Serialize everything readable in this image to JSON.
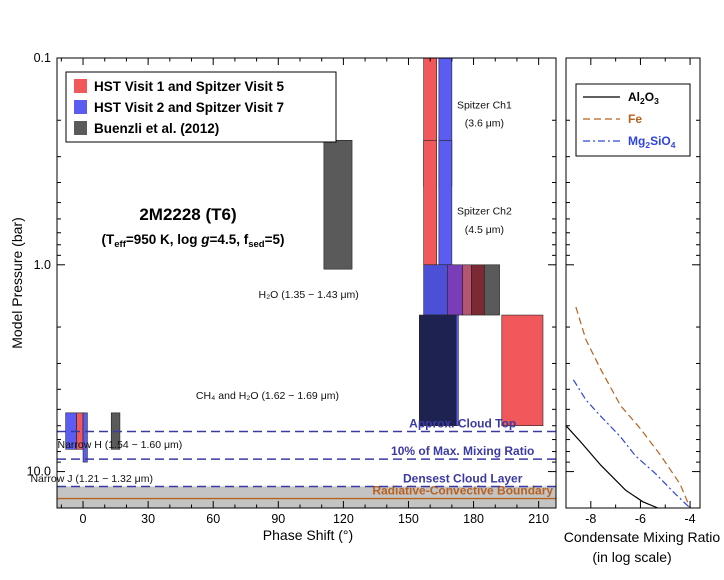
{
  "chart_data": [
    {
      "type": "bar",
      "title": "2M2228 (T6)",
      "subtitle": {
        "pre": "(T",
        "teff_sub": "eff",
        "mid1": "=950 K, log ",
        "g": "g",
        "mid2": "=4.5, f",
        "fsed_sub": "sed",
        "post": "=5)"
      },
      "xlabel": "Phase Shift (°)",
      "ylabel": "Model Pressure (bar)",
      "xlim": [
        -12,
        218
      ],
      "ylim": [
        0.1,
        15
      ],
      "yscale": "log",
      "xticks": [
        "0",
        "30",
        "60",
        "90",
        "120",
        "150",
        "180",
        "210"
      ],
      "yticks": [
        "0.1",
        "1.0",
        "10.0"
      ],
      "legend_placement": "top-left",
      "legend": [
        {
          "label": "HST Visit 1 and Spitzer Visit 5",
          "color": "#f0585c"
        },
        {
          "label": "HST Visit 2 and Spitzer Visit 7",
          "color": "#5a5cf2"
        },
        {
          "label": "Buenzli et al. (2012)",
          "color": "#5a5a5a"
        }
      ],
      "series": [
        {
          "name": "HST Visit 1 and Spitzer Visit 5",
          "color": "#f0585c",
          "bars": [
            {
              "x": [
                157,
                163
              ],
              "p": [
                0.1,
                0.42
              ]
            },
            {
              "x": [
                157,
                163
              ],
              "p": [
                0.25,
                1.0
              ]
            },
            {
              "x": [
                193,
                212
              ],
              "p": [
                1.75,
                6.0
              ]
            },
            {
              "x": [
                -3,
                0
              ],
              "p": [
                5.2,
                7.8
              ]
            }
          ]
        },
        {
          "name": "HST Visit 2 and Spitzer Visit 7",
          "color": "#5a5cf2",
          "bars": [
            {
              "x": [
                164,
                170
              ],
              "p": [
                0.1,
                0.42
              ]
            },
            {
              "x": [
                164,
                170
              ],
              "p": [
                0.25,
                1.0
              ]
            },
            {
              "x": [
                160,
                173
              ],
              "p": [
                1.0,
                6.0
              ]
            },
            {
              "x": [
                -8,
                -3
              ],
              "p": [
                5.2,
                7.8
              ]
            },
            {
              "x": [
                0,
                2
              ],
              "p": [
                5.2,
                9.0
              ]
            }
          ]
        },
        {
          "name": "Buenzli et al. (2012)",
          "color": "#5a5a5a",
          "bars": [
            {
              "x": [
                111,
                124
              ],
              "p": [
                0.25,
                1.05
              ]
            },
            {
              "x": [
                13,
                17
              ],
              "p": [
                5.2,
                7.8
              ]
            }
          ]
        }
      ],
      "overlap_bars": [
        {
          "x": [
            157,
            172
          ],
          "p": [
            1.0,
            1.75
          ],
          "color": "#4b50d6"
        },
        {
          "x": [
            168,
            175
          ],
          "p": [
            1.0,
            1.75
          ],
          "color": "#7a3db8"
        },
        {
          "x": [
            175,
            179
          ],
          "p": [
            1.0,
            1.75
          ],
          "color": "#b55572"
        },
        {
          "x": [
            179,
            185
          ],
          "p": [
            1.0,
            1.75
          ],
          "color": "#7b2a33"
        },
        {
          "x": [
            185,
            192
          ],
          "p": [
            1.0,
            1.75
          ],
          "color": "#5a5a5a"
        },
        {
          "x": [
            155,
            172
          ],
          "p": [
            1.75,
            6.0
          ],
          "color": "#1e2250"
        }
      ],
      "hlines": [
        {
          "label": "Approx. Cloud Top",
          "p": 6.4,
          "color": "#3b3aa3",
          "label_x": 175
        },
        {
          "label": "10% of Max. Mixing Ratio",
          "p": 8.7,
          "color": "#3b3aa3",
          "label_x": 175
        },
        {
          "label": "Densest Cloud Layer",
          "p": 11.8,
          "color": "#3b3aa3",
          "label_x": 175
        }
      ],
      "rcb": {
        "label": "Radiative-Convective Boundary",
        "p_range": [
          11.8,
          15.0
        ],
        "line_p": 13.5,
        "fill": "#c4c4c4",
        "line_color": "#b8621e"
      },
      "annotations": [
        {
          "text": "Spitzer Ch1",
          "x": 185,
          "p": 0.175
        },
        {
          "text": "(3.6 μm)",
          "x": 185,
          "p": 0.215
        },
        {
          "text": "Spitzer Ch2",
          "x": 185,
          "p": 0.57
        },
        {
          "text": "(4.5 μm)",
          "x": 185,
          "p": 0.7
        },
        {
          "text": "H₂O (1.35 − 1.43 μm)",
          "x": 104,
          "p": 1.45
        },
        {
          "text": "CH₄ and H₂O (1.62 − 1.69 μm)",
          "x": 85,
          "p": 4.45
        },
        {
          "text": "Narrow H (1.54 − 1.60 μm)",
          "x": 17,
          "p": 7.7
        },
        {
          "text": "Narrow J (1.21 − 1.32 μm)",
          "x": 4,
          "p": 11.2
        }
      ]
    },
    {
      "type": "line",
      "xlabel": "Condensate Mixing Ratio",
      "xlabel2": "(in log scale)",
      "xlim": [
        -9,
        -3.6
      ],
      "ylim": [
        0.1,
        15
      ],
      "yscale": "log",
      "xticks": [
        "-8",
        "-6",
        "-4"
      ],
      "legend_placement": "top",
      "series": [
        {
          "name_parts": [
            "Al",
            "2",
            "O",
            "3",
            ""
          ],
          "color": "#000000",
          "dash": "",
          "text_color": "#000000",
          "x": [
            -9.0,
            -8.4,
            -7.6,
            -6.6,
            -5.9,
            -5.3
          ],
          "p": [
            6.0,
            7.2,
            9.3,
            12.3,
            14.0,
            15.0
          ]
        },
        {
          "name_parts": [
            "Fe",
            "",
            "",
            "",
            ""
          ],
          "color": "#b8621e",
          "dash": "7,4",
          "text_color": "#b8621e",
          "x": [
            -8.6,
            -8.2,
            -7.6,
            -6.8,
            -6.0,
            -5.2,
            -4.4,
            -4.0
          ],
          "p": [
            1.6,
            2.3,
            3.2,
            4.8,
            6.2,
            8.3,
            11.5,
            15.0
          ]
        },
        {
          "name_parts": [
            "Mg",
            "2",
            "SiO",
            "4",
            ""
          ],
          "color": "#2e46e0",
          "dash": "7,3,2,3",
          "text_color": "#2e46e0",
          "x": [
            -8.7,
            -8.2,
            -7.6,
            -6.8,
            -6.2,
            -5.4,
            -4.6,
            -4.0
          ],
          "p": [
            3.6,
            4.5,
            5.4,
            6.8,
            8.4,
            10.2,
            12.8,
            15.0
          ]
        }
      ]
    }
  ]
}
